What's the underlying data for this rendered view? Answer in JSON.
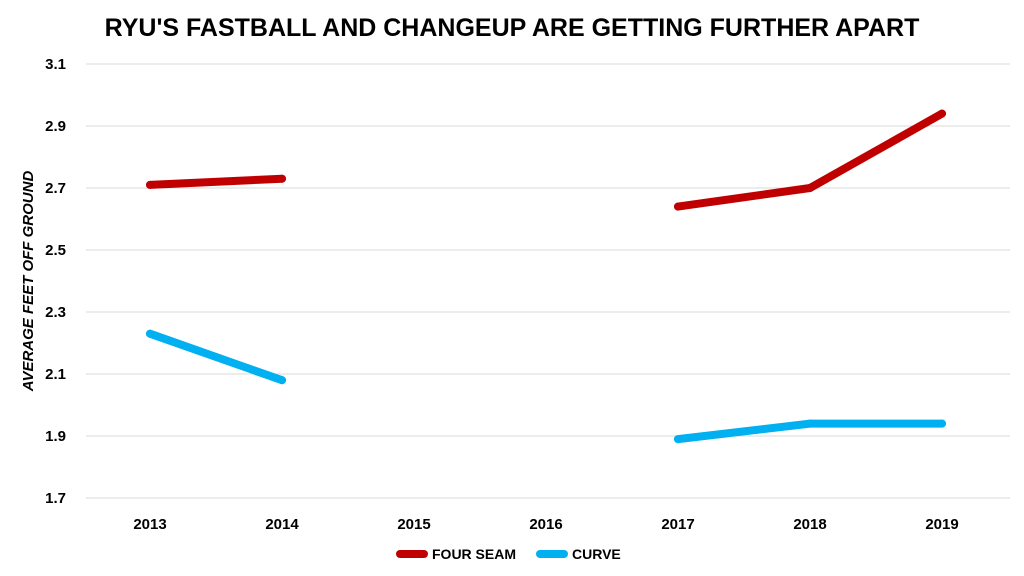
{
  "chart_data": {
    "type": "line",
    "title": "RYU'S FASTBALL AND CHANGEUP ARE GETTING FURTHER APART",
    "xlabel": "",
    "ylabel": "AVERAGE FEET OFF GROUND",
    "categories": [
      "2013",
      "2014",
      "2015",
      "2016",
      "2017",
      "2018",
      "2019"
    ],
    "y_ticks": [
      "1.7",
      "1.9",
      "2.1",
      "2.3",
      "2.5",
      "2.7",
      "2.9",
      "3.1"
    ],
    "ylim": [
      1.7,
      3.1
    ],
    "grid": true,
    "legend_position": "bottom",
    "series": [
      {
        "name": "FOUR SEAM",
        "color": "#c00000",
        "values": [
          2.71,
          2.73,
          null,
          null,
          2.64,
          2.7,
          2.94
        ]
      },
      {
        "name": "CURVE",
        "color": "#00b0f0",
        "values": [
          2.23,
          2.08,
          null,
          null,
          1.89,
          1.94,
          1.94
        ]
      }
    ]
  }
}
